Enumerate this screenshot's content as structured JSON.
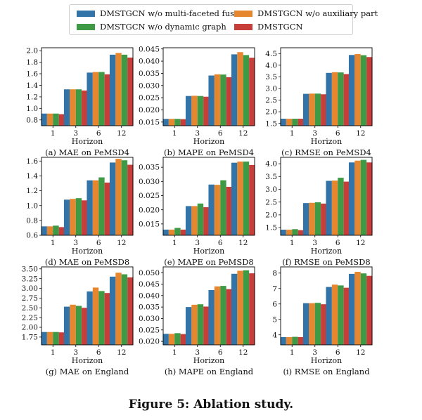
{
  "legend": {
    "items": [
      {
        "name": "DMSTGCN w/o multi-faceted fusion",
        "color": "#3374a8"
      },
      {
        "name": "DMSTGCN w/o auxiliary part",
        "color": "#e6862f"
      },
      {
        "name": "DMSTGCN w/o dynamic graph",
        "color": "#3e9a44"
      },
      {
        "name": "DMSTGCN",
        "color": "#c73d3a"
      }
    ]
  },
  "caption": "Figure 5: Ablation study.",
  "chart_data": [
    {
      "type": "bar",
      "title": "(a) MAE on PeMSD4",
      "xlabel": "Horizon",
      "ylabel": "",
      "categories": [
        "1",
        "3",
        "6",
        "12"
      ],
      "ylim": [
        0.7,
        2.05
      ],
      "yticks": [
        0.8,
        1.0,
        1.2,
        1.4,
        1.6,
        1.8,
        2.0
      ],
      "ytick_labels": [
        "0.8",
        "1.0",
        "1.2",
        "1.4",
        "1.6",
        "1.8",
        "2.0"
      ],
      "series": [
        {
          "name": "DMSTGCN w/o multi-faceted fusion",
          "values": [
            0.91,
            1.33,
            1.62,
            1.93
          ]
        },
        {
          "name": "DMSTGCN w/o auxiliary part",
          "values": [
            0.91,
            1.33,
            1.63,
            1.96
          ]
        },
        {
          "name": "DMSTGCN w/o dynamic graph",
          "values": [
            0.91,
            1.33,
            1.63,
            1.93
          ]
        },
        {
          "name": "DMSTGCN",
          "values": [
            0.9,
            1.31,
            1.59,
            1.88
          ]
        }
      ]
    },
    {
      "type": "bar",
      "title": "(b) MAPE on PeMSD4",
      "xlabel": "Horizon",
      "ylabel": "",
      "categories": [
        "1",
        "3",
        "6",
        "12"
      ],
      "ylim": [
        0.0135,
        0.0455
      ],
      "yticks": [
        0.015,
        0.02,
        0.025,
        0.03,
        0.035,
        0.04,
        0.045
      ],
      "ytick_labels": [
        "0.015",
        "0.020",
        "0.025",
        "0.030",
        "0.035",
        "0.040",
        "0.045"
      ],
      "series": [
        {
          "name": "DMSTGCN w/o multi-faceted fusion",
          "values": [
            0.0163,
            0.0257,
            0.0341,
            0.0428
          ]
        },
        {
          "name": "DMSTGCN w/o auxiliary part",
          "values": [
            0.0163,
            0.0258,
            0.0346,
            0.0437
          ]
        },
        {
          "name": "DMSTGCN w/o dynamic graph",
          "values": [
            0.0163,
            0.0257,
            0.0345,
            0.0425
          ]
        },
        {
          "name": "DMSTGCN",
          "values": [
            0.0162,
            0.0254,
            0.0334,
            0.0414
          ]
        }
      ]
    },
    {
      "type": "bar",
      "title": "(c) RMSE on PeMSD4",
      "xlabel": "Horizon",
      "ylabel": "",
      "categories": [
        "1",
        "3",
        "6",
        "12"
      ],
      "ylim": [
        1.4,
        4.75
      ],
      "yticks": [
        1.5,
        2.0,
        2.5,
        3.0,
        3.5,
        4.0,
        4.5
      ],
      "ytick_labels": [
        "1.5",
        "2.0",
        "2.5",
        "3.0",
        "3.5",
        "4.0",
        "4.5"
      ],
      "series": [
        {
          "name": "DMSTGCN w/o multi-faceted fusion",
          "values": [
            1.7,
            2.77,
            3.67,
            4.44
          ]
        },
        {
          "name": "DMSTGCN w/o auxiliary part",
          "values": [
            1.7,
            2.78,
            3.7,
            4.48
          ]
        },
        {
          "name": "DMSTGCN w/o dynamic graph",
          "values": [
            1.7,
            2.78,
            3.69,
            4.43
          ]
        },
        {
          "name": "DMSTGCN",
          "values": [
            1.7,
            2.75,
            3.62,
            4.35
          ]
        }
      ]
    },
    {
      "type": "bar",
      "title": "(d) MAE on PeMSD8",
      "xlabel": "Horizon",
      "ylabel": "",
      "categories": [
        "1",
        "3",
        "6",
        "12"
      ],
      "ylim": [
        0.6,
        1.65
      ],
      "yticks": [
        0.6,
        0.8,
        1.0,
        1.2,
        1.4,
        1.6
      ],
      "ytick_labels": [
        "0.6",
        "0.8",
        "1.0",
        "1.2",
        "1.4",
        "1.6"
      ],
      "series": [
        {
          "name": "DMSTGCN w/o multi-faceted fusion",
          "values": [
            0.72,
            1.08,
            1.34,
            1.58
          ]
        },
        {
          "name": "DMSTGCN w/o auxiliary part",
          "values": [
            0.72,
            1.09,
            1.34,
            1.63
          ]
        },
        {
          "name": "DMSTGCN w/o dynamic graph",
          "values": [
            0.73,
            1.1,
            1.38,
            1.61
          ]
        },
        {
          "name": "DMSTGCN",
          "values": [
            0.71,
            1.07,
            1.31,
            1.55
          ]
        }
      ]
    },
    {
      "type": "bar",
      "title": "(e) MAPE on PeMSD8",
      "xlabel": "Horizon",
      "ylabel": "",
      "categories": [
        "1",
        "3",
        "6",
        "12"
      ],
      "ylim": [
        0.011,
        0.0385
      ],
      "yticks": [
        0.015,
        0.02,
        0.025,
        0.03,
        0.035
      ],
      "ytick_labels": [
        "0.015",
        "0.020",
        "0.025",
        "0.030",
        "0.035"
      ],
      "series": [
        {
          "name": "DMSTGCN w/o multi-faceted fusion",
          "values": [
            0.013,
            0.0213,
            0.0289,
            0.0366
          ]
        },
        {
          "name": "DMSTGCN w/o auxiliary part",
          "values": [
            0.013,
            0.0213,
            0.0288,
            0.037
          ]
        },
        {
          "name": "DMSTGCN w/o dynamic graph",
          "values": [
            0.0136,
            0.0222,
            0.0304,
            0.037
          ]
        },
        {
          "name": "DMSTGCN",
          "values": [
            0.013,
            0.0209,
            0.0281,
            0.0358
          ]
        }
      ]
    },
    {
      "type": "bar",
      "title": "(f) RMSE on PeMSD8",
      "xlabel": "Horizon",
      "ylabel": "",
      "categories": [
        "1",
        "3",
        "6",
        "12"
      ],
      "ylim": [
        1.2,
        4.25
      ],
      "yticks": [
        1.5,
        2.0,
        2.5,
        3.0,
        3.5,
        4.0
      ],
      "ytick_labels": [
        "1.5",
        "2.0",
        "2.5",
        "3.0",
        "3.5",
        "4.0"
      ],
      "series": [
        {
          "name": "DMSTGCN w/o multi-faceted fusion",
          "values": [
            1.42,
            2.46,
            3.33,
            4.05
          ]
        },
        {
          "name": "DMSTGCN w/o auxiliary part",
          "values": [
            1.42,
            2.47,
            3.34,
            4.12
          ]
        },
        {
          "name": "DMSTGCN w/o dynamic graph",
          "values": [
            1.44,
            2.49,
            3.45,
            4.15
          ]
        },
        {
          "name": "DMSTGCN",
          "values": [
            1.4,
            2.44,
            3.3,
            4.05
          ]
        }
      ]
    },
    {
      "type": "bar",
      "title": "(g) MAE on England",
      "xlabel": "Horizon",
      "ylabel": "",
      "categories": [
        "1",
        "3",
        "6",
        "12"
      ],
      "ylim": [
        1.55,
        3.55
      ],
      "yticks": [
        1.75,
        2.0,
        2.25,
        2.5,
        2.75,
        3.0,
        3.25,
        3.5
      ],
      "ytick_labels": [
        "1.75",
        "2.00",
        "2.25",
        "2.50",
        "2.75",
        "3.00",
        "3.25",
        "3.50"
      ],
      "series": [
        {
          "name": "DMSTGCN w/o multi-faceted fusion",
          "values": [
            1.88,
            2.53,
            2.92,
            3.3
          ]
        },
        {
          "name": "DMSTGCN w/o auxiliary part",
          "values": [
            1.88,
            2.58,
            3.02,
            3.4
          ]
        },
        {
          "name": "DMSTGCN w/o dynamic graph",
          "values": [
            1.88,
            2.55,
            2.93,
            3.36
          ]
        },
        {
          "name": "DMSTGCN",
          "values": [
            1.87,
            2.5,
            2.88,
            3.28
          ]
        }
      ]
    },
    {
      "type": "bar",
      "title": "(h) MAPE on England",
      "xlabel": "Horizon",
      "ylabel": "",
      "categories": [
        "1",
        "3",
        "6",
        "12"
      ],
      "ylim": [
        0.0185,
        0.0525
      ],
      "yticks": [
        0.02,
        0.025,
        0.03,
        0.035,
        0.04,
        0.045,
        0.05
      ],
      "ytick_labels": [
        "0.020",
        "0.025",
        "0.030",
        "0.035",
        "0.040",
        "0.045",
        "0.050"
      ],
      "series": [
        {
          "name": "DMSTGCN w/o multi-faceted fusion",
          "values": [
            0.0233,
            0.035,
            0.0424,
            0.0495
          ]
        },
        {
          "name": "DMSTGCN w/o auxiliary part",
          "values": [
            0.0233,
            0.036,
            0.044,
            0.0508
          ]
        },
        {
          "name": "DMSTGCN w/o dynamic graph",
          "values": [
            0.0236,
            0.0362,
            0.0442,
            0.051
          ]
        },
        {
          "name": "DMSTGCN",
          "values": [
            0.0232,
            0.0352,
            0.0428,
            0.0497
          ]
        }
      ]
    },
    {
      "type": "bar",
      "title": "(i) RMSE on England",
      "xlabel": "Horizon",
      "ylabel": "",
      "categories": [
        "1",
        "3",
        "6",
        "12"
      ],
      "ylim": [
        3.35,
        8.4
      ],
      "yticks": [
        4,
        5,
        6,
        7,
        8
      ],
      "ytick_labels": [
        "4",
        "5",
        "6",
        "7",
        "8"
      ],
      "series": [
        {
          "name": "DMSTGCN w/o multi-faceted fusion",
          "values": [
            3.85,
            6.05,
            7.1,
            7.95
          ]
        },
        {
          "name": "DMSTGCN w/o auxiliary part",
          "values": [
            3.85,
            6.05,
            7.25,
            8.08
          ]
        },
        {
          "name": "DMSTGCN w/o dynamic graph",
          "values": [
            3.87,
            6.07,
            7.2,
            7.98
          ]
        },
        {
          "name": "DMSTGCN",
          "values": [
            3.85,
            5.98,
            7.05,
            7.82
          ]
        }
      ]
    }
  ]
}
